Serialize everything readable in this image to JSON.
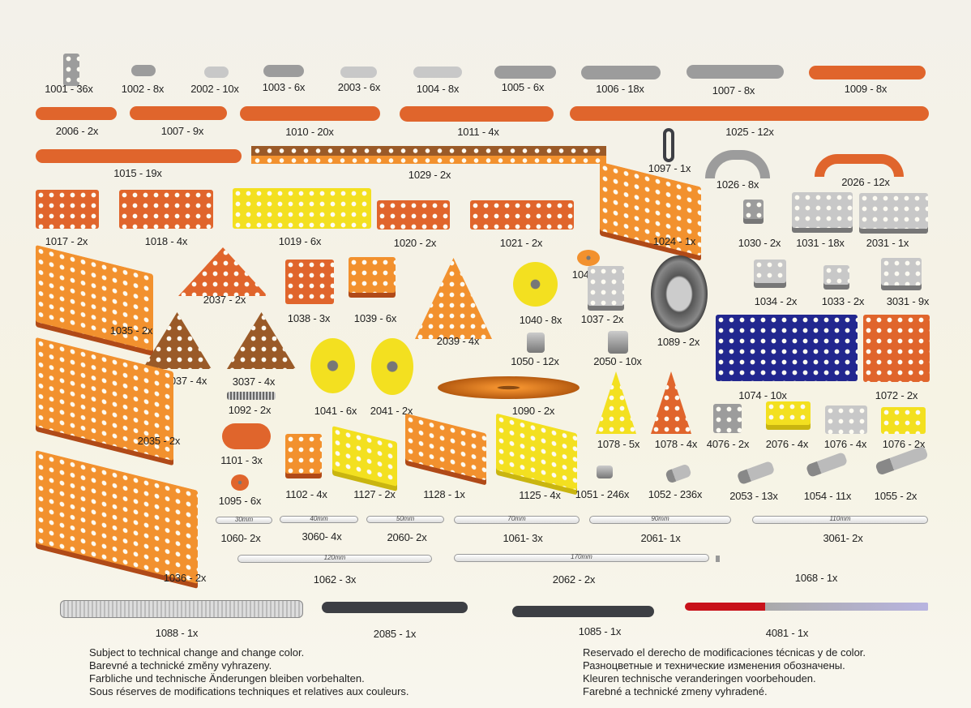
{
  "colors": {
    "orange": "#e0652c",
    "light_orange": "#f2912e",
    "gray": "#9c9c9c",
    "light_gray": "#c8c8c8",
    "yellow": "#f3e020",
    "blue": "#22278f",
    "brown": "#9a5a28",
    "dark": "#3d3f44",
    "red": "#c8121a"
  },
  "parts": [
    {
      "label": "1001 - 36x",
      "color": "gray",
      "kind": "plate"
    },
    {
      "label": "1002 - 8x",
      "color": "gray",
      "kind": "bar"
    },
    {
      "label": "2002 - 10x",
      "color": "light_gray",
      "kind": "bar"
    },
    {
      "label": "1003 - 6x",
      "color": "gray",
      "kind": "bar"
    },
    {
      "label": "2003 - 6x",
      "color": "light_gray",
      "kind": "bar"
    },
    {
      "label": "1004 - 8x",
      "color": "light_gray",
      "kind": "bar"
    },
    {
      "label": "1005 - 6x",
      "color": "gray",
      "kind": "bar"
    },
    {
      "label": "1006 - 18x",
      "color": "gray",
      "kind": "bar"
    },
    {
      "label": "1007 - 8x",
      "color": "gray",
      "kind": "bar"
    },
    {
      "label": "1009 - 8x",
      "color": "orange",
      "kind": "bar"
    },
    {
      "label": "2006 - 2x",
      "color": "orange",
      "kind": "bar"
    },
    {
      "label": "1007 - 9x",
      "color": "orange",
      "kind": "bar"
    },
    {
      "label": "1010 - 20x",
      "color": "orange",
      "kind": "bar"
    },
    {
      "label": "1011 - 4x",
      "color": "orange",
      "kind": "bar"
    },
    {
      "label": "1025 - 12x",
      "color": "orange",
      "kind": "bar"
    },
    {
      "label": "1015 - 19x",
      "color": "orange",
      "kind": "bar"
    },
    {
      "label": "1029 - 2x",
      "color": "light_orange",
      "kind": "angle"
    },
    {
      "label": "1097 - 1x",
      "color": "dark",
      "kind": "hook"
    },
    {
      "label": "1026 - 8x",
      "color": "gray",
      "kind": "arc"
    },
    {
      "label": "2026 - 12x",
      "color": "orange",
      "kind": "arc"
    },
    {
      "label": "1017 - 2x",
      "color": "orange",
      "kind": "plate"
    },
    {
      "label": "1018 - 4x",
      "color": "orange",
      "kind": "plate"
    },
    {
      "label": "1019 - 6x",
      "color": "yellow",
      "kind": "plate"
    },
    {
      "label": "1020 - 2x",
      "color": "orange",
      "kind": "plate"
    },
    {
      "label": "1021 - 2x",
      "color": "orange",
      "kind": "plate"
    },
    {
      "label": "1024 - 1x",
      "color": "light_orange",
      "kind": "tray"
    },
    {
      "label": "1030 - 2x",
      "color": "gray",
      "kind": "bracket"
    },
    {
      "label": "1031 - 18x",
      "color": "light_gray",
      "kind": "bracket"
    },
    {
      "label": "2031 - 1x",
      "color": "light_gray",
      "kind": "bracket"
    },
    {
      "label": "1035 - 2x",
      "color": "light_orange",
      "kind": "tray"
    },
    {
      "label": "2037 - 2x",
      "color": "orange",
      "kind": "triangle"
    },
    {
      "label": "1038 - 3x",
      "color": "orange",
      "kind": "plate"
    },
    {
      "label": "1039 - 6x",
      "color": "light_orange",
      "kind": "bracket"
    },
    {
      "label": "2039 - 4x",
      "color": "light_orange",
      "kind": "triangle"
    },
    {
      "label": "1048 - 1x",
      "color": "light_orange",
      "kind": "disc"
    },
    {
      "label": "1040 - 8x",
      "color": "yellow",
      "kind": "disc"
    },
    {
      "label": "1037 - 2x",
      "color": "light_gray",
      "kind": "bracket"
    },
    {
      "label": "1089 - 2x",
      "color": "gray",
      "kind": "tire"
    },
    {
      "label": "1034 - 2x",
      "color": "light_gray",
      "kind": "bracket"
    },
    {
      "label": "1033 - 2x",
      "color": "light_gray",
      "kind": "bracket"
    },
    {
      "label": "3031 - 9x",
      "color": "light_gray",
      "kind": "bracket"
    },
    {
      "label": "4037 - 4x",
      "color": "brown",
      "kind": "triangle"
    },
    {
      "label": "3037 - 4x",
      "color": "brown",
      "kind": "triangle"
    },
    {
      "label": "1041 - 6x",
      "color": "yellow",
      "kind": "disc"
    },
    {
      "label": "2041 - 2x",
      "color": "yellow",
      "kind": "disc"
    },
    {
      "label": "1050 - 12x",
      "color": "gray",
      "kind": "nut"
    },
    {
      "label": "2050 - 10x",
      "color": "gray",
      "kind": "nut"
    },
    {
      "label": "1090 - 2x",
      "color": "light_orange",
      "kind": "propeller"
    },
    {
      "label": "1074 - 10x",
      "color": "blue",
      "kind": "plate"
    },
    {
      "label": "1072 - 2x",
      "color": "orange",
      "kind": "plate"
    },
    {
      "label": "1092 - 2x",
      "color": "gray",
      "kind": "spring"
    },
    {
      "label": "2035 - 2x",
      "color": "light_orange",
      "kind": "tray"
    },
    {
      "label": "1101 - 3x",
      "color": "orange",
      "kind": "bar"
    },
    {
      "label": "1078 - 5x",
      "color": "yellow",
      "kind": "triangle"
    },
    {
      "label": "1078 - 4x",
      "color": "orange",
      "kind": "triangle"
    },
    {
      "label": "4076 - 2x",
      "color": "gray",
      "kind": "plate"
    },
    {
      "label": "2076 - 4x",
      "color": "yellow",
      "kind": "bracket"
    },
    {
      "label": "1076 - 4x",
      "color": "light_gray",
      "kind": "plate"
    },
    {
      "label": "1076 - 2x",
      "color": "yellow",
      "kind": "plate"
    },
    {
      "label": "1095 - 6x",
      "color": "orange",
      "kind": "disc"
    },
    {
      "label": "1102 - 4x",
      "color": "light_orange",
      "kind": "bracket"
    },
    {
      "label": "1127 - 2x",
      "color": "yellow",
      "kind": "tray"
    },
    {
      "label": "1128 - 1x",
      "color": "light_orange",
      "kind": "tray"
    },
    {
      "label": "1125 - 4x",
      "color": "yellow",
      "kind": "tray"
    },
    {
      "label": "1051 - 246x",
      "color": "gray",
      "kind": "nut"
    },
    {
      "label": "1052 - 236x",
      "color": "gray",
      "kind": "screw"
    },
    {
      "label": "2053 - 13x",
      "color": "gray",
      "kind": "screw"
    },
    {
      "label": "1054 - 11x",
      "color": "gray",
      "kind": "screw"
    },
    {
      "label": "1055 - 2x",
      "color": "gray",
      "kind": "screw"
    },
    {
      "label": "1036 - 2x",
      "color": "light_orange",
      "kind": "tray"
    },
    {
      "label": "1060- 2x",
      "kind": "rod",
      "mm": "30mm"
    },
    {
      "label": "3060- 4x",
      "kind": "rod",
      "mm": "40mm"
    },
    {
      "label": "2060- 2x",
      "kind": "rod",
      "mm": "50mm"
    },
    {
      "label": "1061- 3x",
      "kind": "rod",
      "mm": "70mm"
    },
    {
      "label": "2061- 1x",
      "kind": "rod",
      "mm": "90mm"
    },
    {
      "label": "3061- 2x",
      "kind": "rod",
      "mm": "110mm"
    },
    {
      "label": "1062 - 3x",
      "kind": "rod",
      "mm": "120mm"
    },
    {
      "label": "2062 - 2x",
      "kind": "rod",
      "mm": "170mm"
    },
    {
      "label": "1068  - 1x",
      "color": "gray",
      "kind": "crank"
    },
    {
      "label": "1088 - 1x",
      "color": "light_gray",
      "kind": "tool"
    },
    {
      "label": "2085 - 1x",
      "color": "dark",
      "kind": "wrench"
    },
    {
      "label": "1085 - 1x",
      "color": "dark",
      "kind": "wrench"
    },
    {
      "label": "4081 - 1x",
      "color": "red",
      "kind": "screwdriver"
    }
  ],
  "footer": {
    "left": [
      "Subject to technical change and change color.",
      "Barevné a technické změny vyhrazeny.",
      "Farbliche und technische Änderungen bleiben vorbehalten.",
      "Sous réserves de modifications techniques et relatives aux couleurs."
    ],
    "right": [
      "Reservado el derecho de modificaciones técnicas y de color.",
      "Разноцветные и технические изменения обозначены.",
      "Kleuren technische veranderingen voorbehouden.",
      "Farebné a technické zmeny vyhradené."
    ]
  }
}
